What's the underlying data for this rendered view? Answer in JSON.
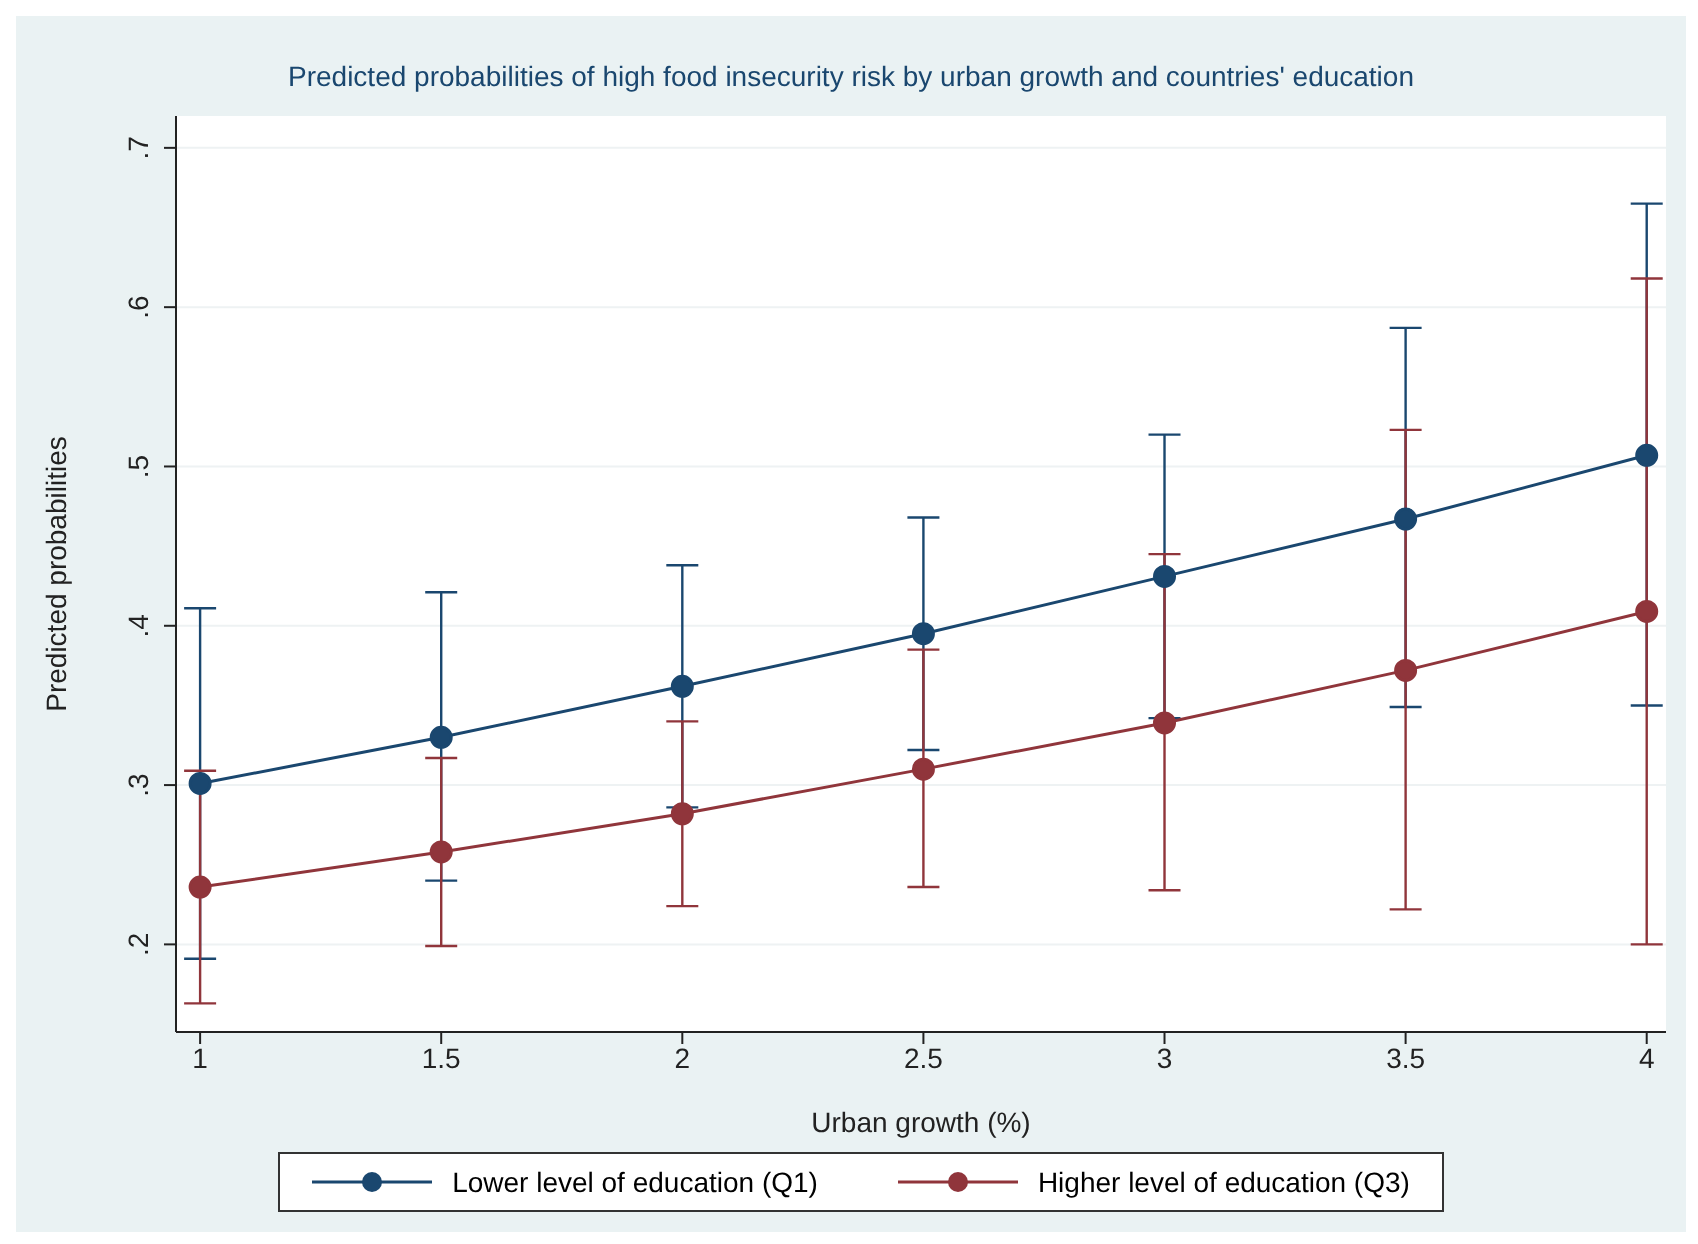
{
  "chart_data": {
    "type": "line",
    "title": "Predicted probabilities of high food insecurity risk by urban growth and countries' education",
    "xlabel": "Urban growth (%)",
    "ylabel": "Predicted probabilities",
    "x": [
      1,
      1.5,
      2,
      2.5,
      3,
      3.5,
      4
    ],
    "series": [
      {
        "name": "Lower level of education (Q1)",
        "color": "#1a476f",
        "values": [
          0.301,
          0.33,
          0.362,
          0.395,
          0.431,
          0.467,
          0.507
        ],
        "errors": [
          [
            0.191,
            0.411
          ],
          [
            0.24,
            0.421
          ],
          [
            0.286,
            0.438
          ],
          [
            0.322,
            0.468
          ],
          [
            0.342,
            0.52
          ],
          [
            0.349,
            0.587
          ],
          [
            0.35,
            0.665
          ]
        ]
      },
      {
        "name": "Higher level of education (Q3)",
        "color": "#90353b",
        "values": [
          0.236,
          0.258,
          0.282,
          0.31,
          0.339,
          0.372,
          0.409
        ],
        "errors": [
          [
            0.163,
            0.309
          ],
          [
            0.199,
            0.317
          ],
          [
            0.224,
            0.34
          ],
          [
            0.236,
            0.385
          ],
          [
            0.234,
            0.445
          ],
          [
            0.222,
            0.523
          ],
          [
            0.2,
            0.618
          ]
        ]
      }
    ],
    "xlim": [
      0.95,
      4.04
    ],
    "xticks": [
      1,
      1.5,
      2,
      2.5,
      3,
      3.5,
      4
    ],
    "ylim": [
      0.145,
      0.72
    ],
    "yticks": [
      {
        "value": 0.2,
        "label": ".2"
      },
      {
        "value": 0.3,
        "label": ".3"
      },
      {
        "value": 0.4,
        "label": ".4"
      },
      {
        "value": 0.5,
        "label": ".5"
      },
      {
        "value": 0.6,
        "label": ".6"
      },
      {
        "value": 0.7,
        "label": ".7"
      }
    ],
    "grid": "y",
    "legend": "bottom",
    "marker": "circle",
    "line_style": "solid"
  }
}
